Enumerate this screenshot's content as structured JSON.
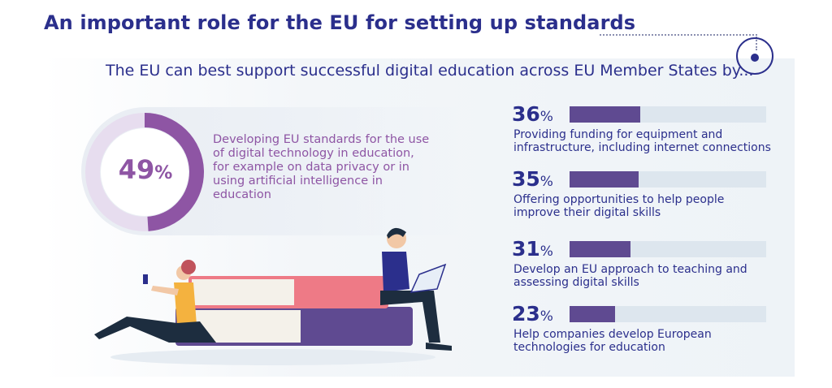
{
  "header": {
    "title": "An important role for the EU for setting up standards",
    "subtitle": "The EU can best support successful digital education across EU Member States by..."
  },
  "colors": {
    "title": "#2b2f8c",
    "highlight": "#8e55a4",
    "bar_fill": "#5f4a91",
    "bar_track": "#dde6ee"
  },
  "chart_data": {
    "type": "bar",
    "unit": "%",
    "main_item": {
      "value": 49,
      "display": "49",
      "label": "Developing EU standards for the use of digital technology in education, for example on data privacy or in using artificial intelligence in education"
    },
    "categories": [
      "Providing funding for equipment and infrastructure, including internet connections",
      "Offering opportunities to help people improve their digital skills",
      "Develop an EU approach to teaching and assessing digital skills",
      "Help companies develop European technologies for education"
    ],
    "values": [
      36,
      35,
      31,
      23
    ],
    "value_labels": [
      "36",
      "35",
      "31",
      "23"
    ],
    "xlim": [
      0,
      100
    ]
  }
}
